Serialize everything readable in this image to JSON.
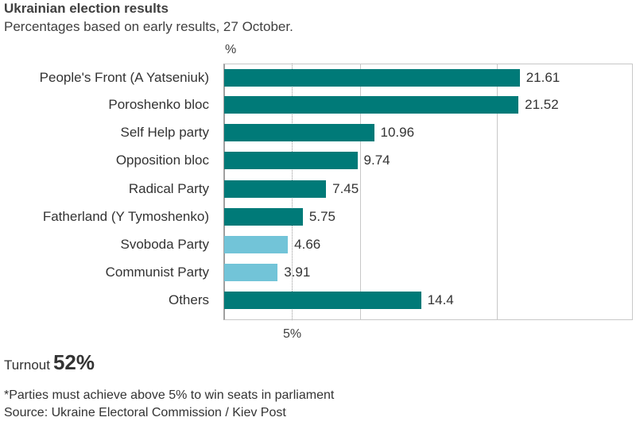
{
  "header": {
    "title": "Ukrainian election results",
    "subtitle": "Percentages based on early results, 27 October."
  },
  "colors": {
    "above_threshold": "#007a78",
    "below_threshold": "#72c4d8",
    "gridline": "#c8c8c8"
  },
  "chart_data": {
    "type": "bar",
    "orientation": "horizontal",
    "title": "Ukrainian election results",
    "subtitle": "Percentages based on early results, 27 October.",
    "xlabel": "%",
    "ylabel": "",
    "categories": [
      "People's Front (A Yatseniuk)",
      "Poroshenko bloc",
      "Self Help party",
      "Opposition bloc",
      "Radical Party",
      "Fatherland (Y Tymoshenko)",
      "Svoboda Party",
      "Communist Party",
      "Others"
    ],
    "values": [
      21.61,
      21.52,
      10.96,
      9.74,
      7.45,
      5.75,
      4.66,
      3.91,
      14.4
    ],
    "value_labels": [
      "21.61",
      "21.52",
      "10.96",
      "9.74",
      "7.45",
      "5.75",
      "4.66",
      "3.91",
      "14.4"
    ],
    "bar_colors": [
      "#007a78",
      "#007a78",
      "#007a78",
      "#007a78",
      "#007a78",
      "#007a78",
      "#72c4d8",
      "#72c4d8",
      "#007a78"
    ],
    "xlim": [
      0,
      30
    ],
    "gridlines_x": [
      10,
      20
    ],
    "threshold_line": {
      "x": 5,
      "label": "5%",
      "style": "dotted"
    },
    "grid": true,
    "legend": null
  },
  "axis": {
    "unit_label": "%",
    "threshold_label": "5%"
  },
  "turnout": {
    "label": "Turnout",
    "value": "52%"
  },
  "footer": {
    "note": "*Parties must achieve above 5% to win seats in parliament",
    "source": "Source: Ukraine Electoral Commission / Kiev Post"
  }
}
